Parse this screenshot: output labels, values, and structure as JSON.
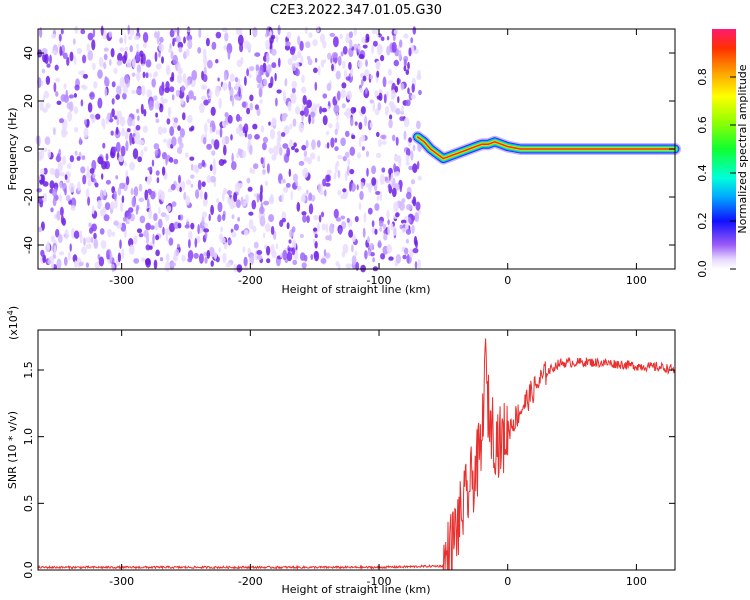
{
  "title": "C2E3.2022.347.01.05.G30",
  "chart_data": [
    {
      "type": "heatmap",
      "xlabel": "Height of straight line (km)",
      "ylabel": "Frequency (Hz)",
      "xlim": [
        -365,
        130
      ],
      "ylim": [
        -50,
        50
      ],
      "xticks": [
        -300,
        -200,
        -100,
        0,
        100
      ],
      "yticks": [
        -40,
        -20,
        0,
        20,
        40
      ],
      "grid": false,
      "noise_region_x": [
        -365,
        -68
      ],
      "signal_region_x": [
        -68,
        130
      ],
      "signal_track": {
        "x": [
          -70,
          -65,
          -60,
          -55,
          -50,
          -45,
          -40,
          -35,
          -30,
          -25,
          -20,
          -15,
          -10,
          -5,
          0,
          10,
          50,
          100,
          130
        ],
        "y": [
          5,
          3,
          0,
          -2,
          -4,
          -3,
          -2,
          -1,
          0,
          1,
          2,
          2,
          3,
          2,
          1,
          0,
          0,
          0,
          0
        ]
      },
      "colorbar": {
        "label": "Normalized spectral amplitude",
        "range": [
          0.0,
          1.0
        ],
        "ticks": [
          "0.0",
          "0.2",
          "0.4",
          "0.6",
          "0.8"
        ]
      }
    },
    {
      "type": "line",
      "xlabel": "Height of straight line (km)",
      "ylabel": "SNR (10 * v/v)",
      "y_multiplier": "(x10",
      "y_multiplier_exp": "4",
      "y_multiplier_close": ")",
      "xlim": [
        -365,
        130
      ],
      "ylim": [
        0,
        1.8
      ],
      "xticks": [
        -300,
        -200,
        -100,
        0,
        100
      ],
      "yticks": [
        "0.0",
        "0.5",
        "1.0",
        "1.5"
      ],
      "grid": false,
      "color": "#e8302e",
      "series": [
        {
          "x": [
            -365,
            -300,
            -200,
            -100,
            -50,
            -45,
            -40,
            -35,
            -30,
            -25,
            -20,
            -18,
            -15,
            -10,
            -5,
            0,
            10,
            20,
            30,
            40,
            60,
            80,
            100,
            120,
            130
          ],
          "y": [
            0.02,
            0.02,
            0.02,
            0.02,
            0.03,
            0.15,
            0.3,
            0.45,
            0.6,
            0.75,
            0.9,
            1.6,
            1.2,
            1.0,
            0.95,
            1.05,
            1.2,
            1.35,
            1.48,
            1.55,
            1.56,
            1.55,
            1.53,
            1.52,
            1.5
          ]
        }
      ]
    }
  ]
}
